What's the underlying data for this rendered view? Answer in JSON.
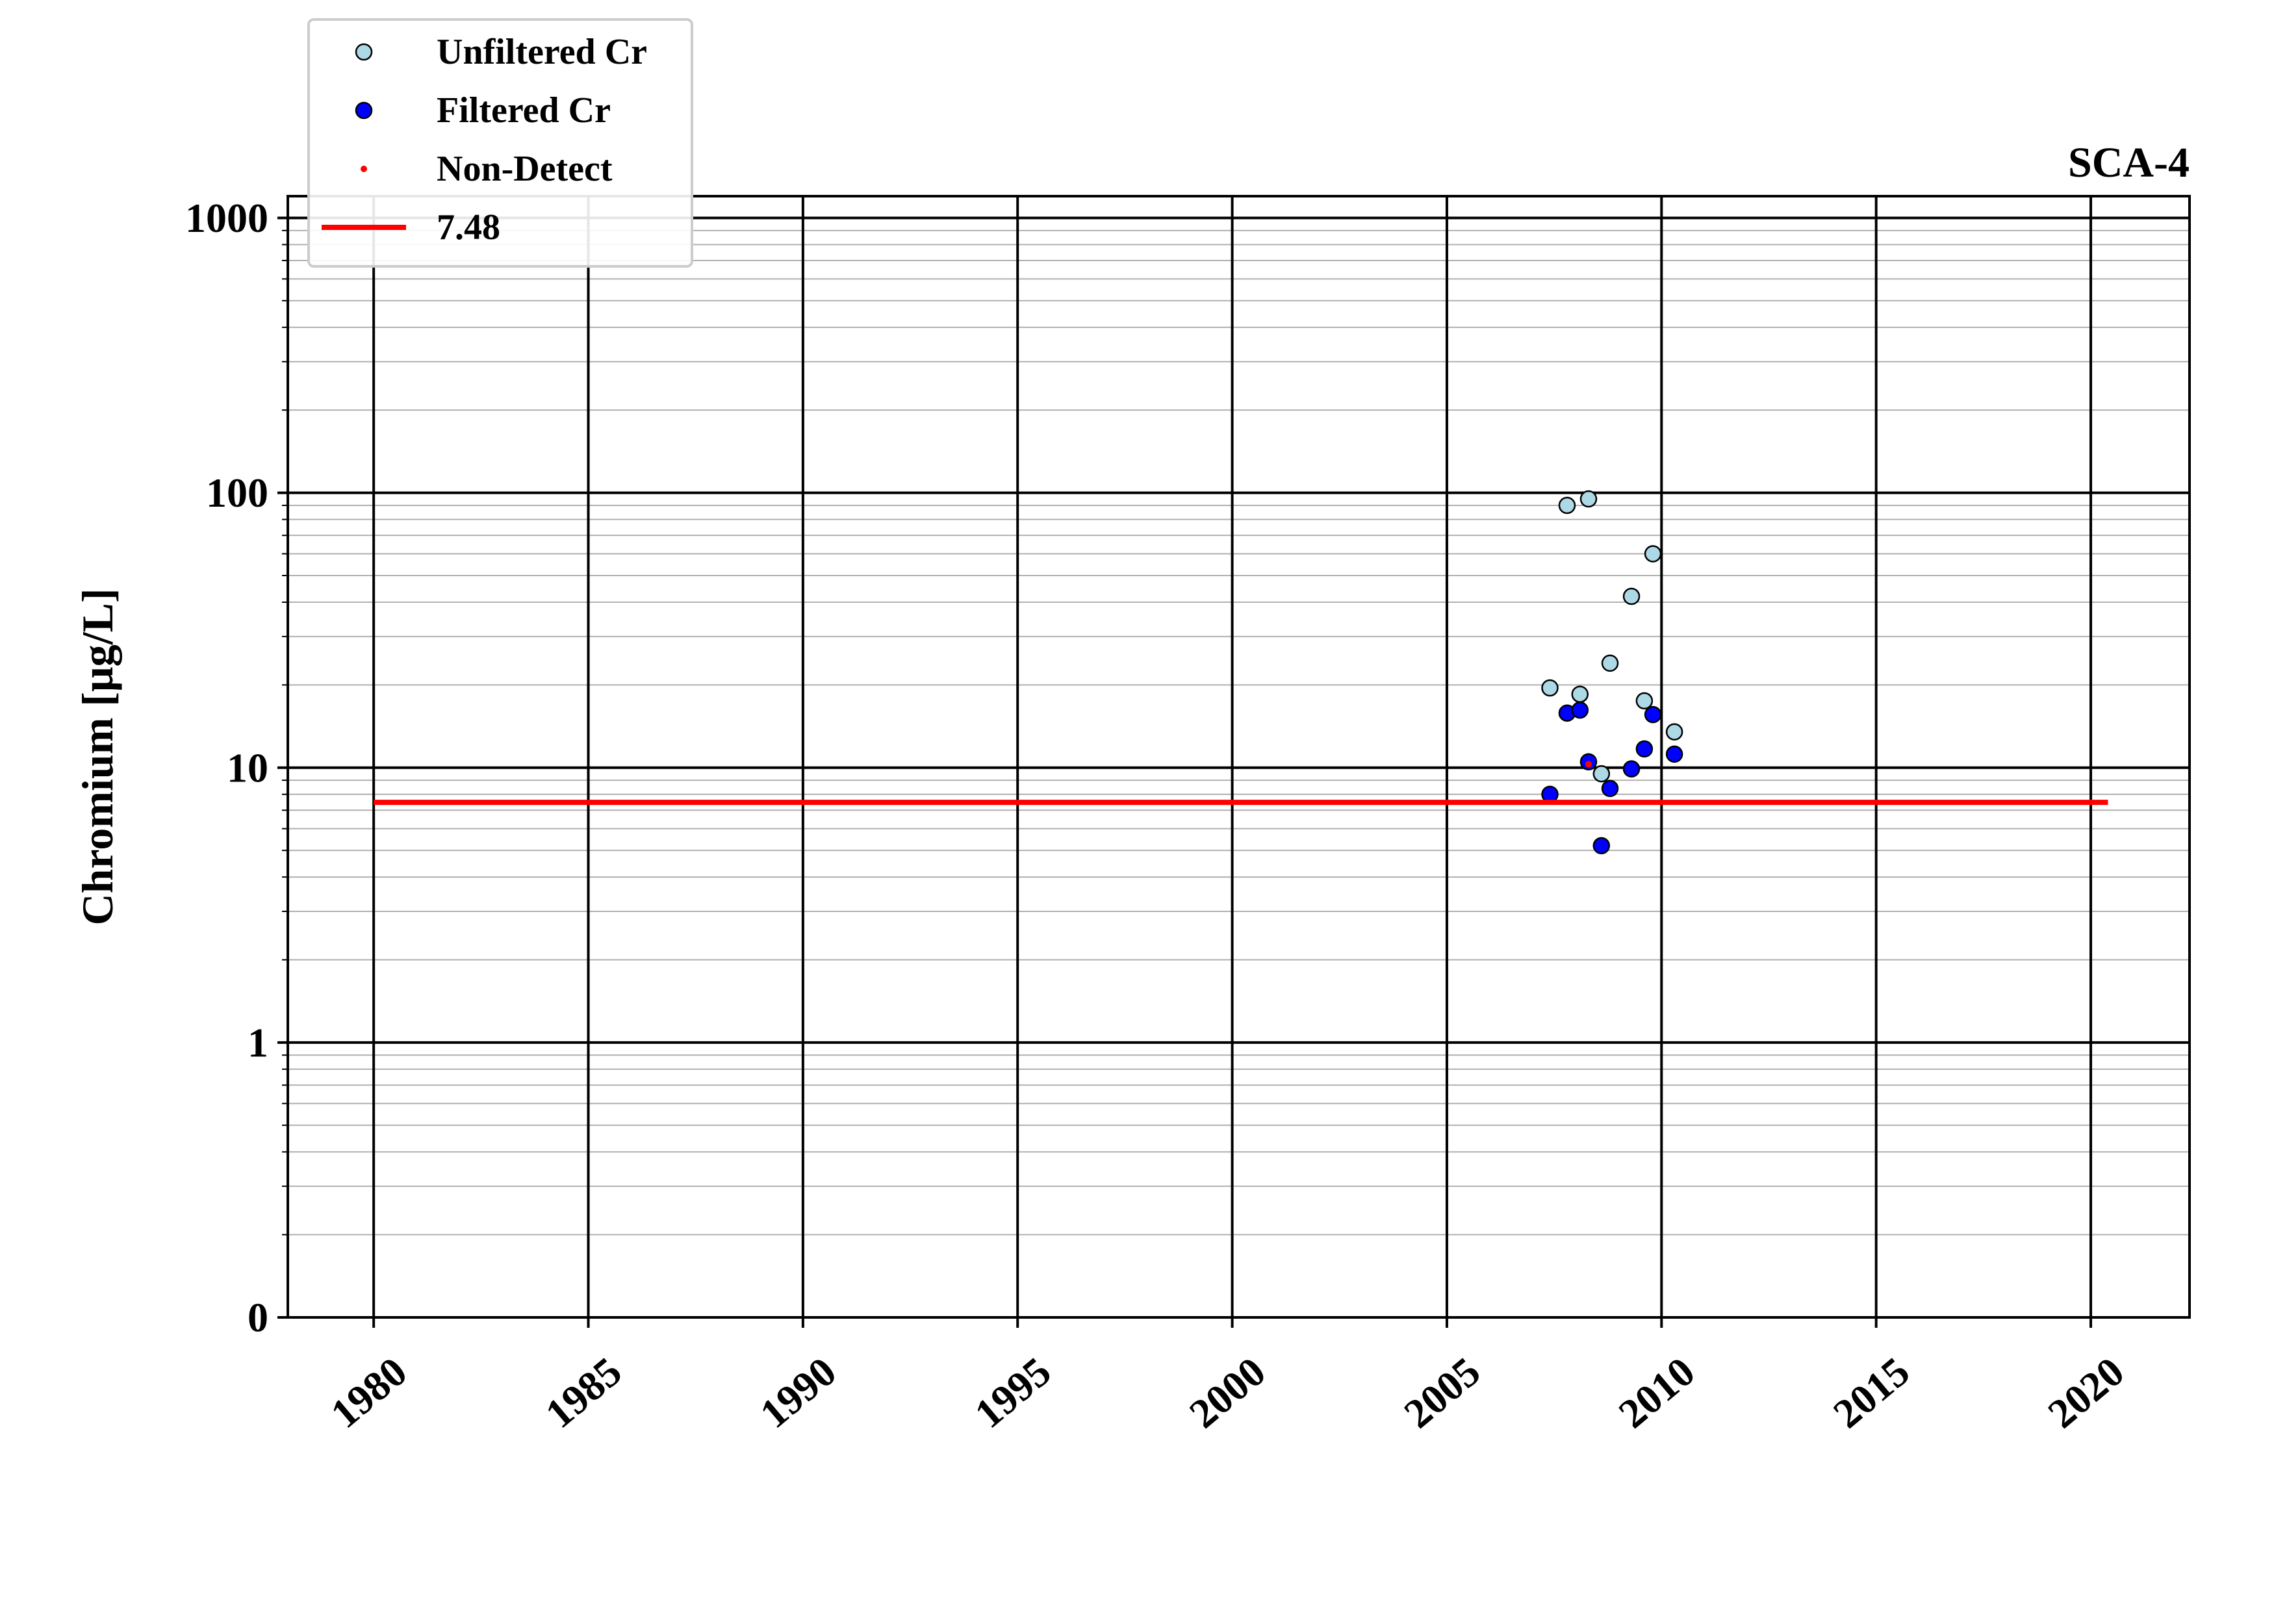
{
  "chart_data": {
    "type": "scatter",
    "title": "SCA-4",
    "xlabel": "",
    "ylabel": "Chromium [μg/L]",
    "x_scale": "date",
    "y_scale": "log",
    "xlim": [
      1978,
      2022.3
    ],
    "ylim": [
      0.1,
      1200
    ],
    "x_ticks": [
      1980,
      1985,
      1990,
      1995,
      2000,
      2005,
      2010,
      2015,
      2020
    ],
    "y_ticks": [
      {
        "value": 0.1,
        "label": "0"
      },
      {
        "value": 1,
        "label": "1"
      },
      {
        "value": 10,
        "label": "10"
      },
      {
        "value": 100,
        "label": "100"
      },
      {
        "value": 1000,
        "label": "1000"
      }
    ],
    "grid": true,
    "legend_position": "top-left",
    "series": [
      {
        "name": "Unfiltered Cr",
        "marker": "circle",
        "color": "#add8e6",
        "edge_color": "#000000",
        "points": [
          {
            "x": 2007.4,
            "y": 19.5
          },
          {
            "x": 2007.8,
            "y": 90
          },
          {
            "x": 2008.1,
            "y": 18.5
          },
          {
            "x": 2008.3,
            "y": 95
          },
          {
            "x": 2008.6,
            "y": 9.5
          },
          {
            "x": 2008.8,
            "y": 24
          },
          {
            "x": 2009.3,
            "y": 42
          },
          {
            "x": 2009.6,
            "y": 17.5
          },
          {
            "x": 2009.8,
            "y": 60
          },
          {
            "x": 2010.3,
            "y": 13.5
          }
        ]
      },
      {
        "name": "Filtered Cr",
        "marker": "circle",
        "color": "#0000ff",
        "edge_color": "#000000",
        "points": [
          {
            "x": 2007.4,
            "y": 8.0
          },
          {
            "x": 2007.8,
            "y": 15.8
          },
          {
            "x": 2008.1,
            "y": 16.2
          },
          {
            "x": 2008.3,
            "y": 10.5
          },
          {
            "x": 2008.6,
            "y": 5.2
          },
          {
            "x": 2008.8,
            "y": 8.4
          },
          {
            "x": 2009.3,
            "y": 9.9
          },
          {
            "x": 2009.6,
            "y": 11.7
          },
          {
            "x": 2009.8,
            "y": 15.6
          },
          {
            "x": 2010.3,
            "y": 11.2
          }
        ]
      },
      {
        "name": "Non-Detect",
        "marker": "dot",
        "color": "#ff0000",
        "points": [
          {
            "x": 2008.3,
            "y": 10.3
          }
        ]
      },
      {
        "name": "7.48",
        "marker": "line",
        "color": "#ff0000",
        "points": [
          {
            "x": 1980,
            "y": 7.48
          },
          {
            "x": 2020.4,
            "y": 7.48
          }
        ]
      }
    ]
  }
}
